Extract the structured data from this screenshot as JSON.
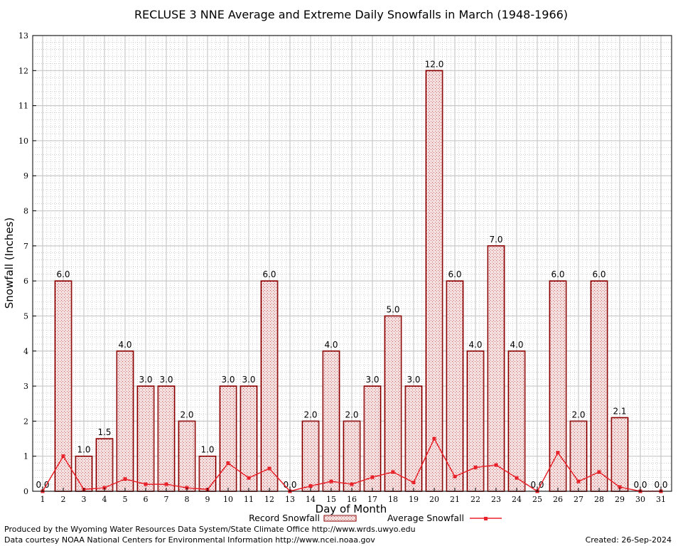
{
  "chart_data": {
    "type": "bar",
    "title": "RECLUSE 3 NNE Average and Extreme Daily Snowfalls in March (1948-1966)",
    "xlabel": "Day of Month",
    "ylabel": "Snowfall (Inches)",
    "ylim": [
      0,
      13
    ],
    "yticks": [
      "0",
      "1",
      "2",
      "3",
      "4",
      "5",
      "6",
      "7",
      "8",
      "9",
      "10",
      "11",
      "12",
      "13"
    ],
    "categories": [
      "1",
      "2",
      "3",
      "4",
      "5",
      "6",
      "7",
      "8",
      "9",
      "10",
      "11",
      "12",
      "13",
      "14",
      "15",
      "16",
      "17",
      "18",
      "19",
      "20",
      "21",
      "22",
      "23",
      "24",
      "25",
      "26",
      "27",
      "28",
      "29",
      "30",
      "31"
    ],
    "grid": true,
    "legend_position": "bottom",
    "series": [
      {
        "name": "Record Snowfall",
        "kind": "bar",
        "color": "#8b0000",
        "values": [
          0.0,
          6.0,
          1.0,
          1.5,
          4.0,
          3.0,
          3.0,
          2.0,
          1.0,
          3.0,
          3.0,
          6.0,
          0.0,
          2.0,
          4.0,
          2.0,
          3.0,
          5.0,
          3.0,
          12.0,
          6.0,
          4.0,
          7.0,
          4.0,
          0.0,
          6.0,
          2.0,
          6.0,
          2.1,
          0.0,
          0.0
        ],
        "labels": [
          "0.0",
          "6.0",
          "1.0",
          "1.5",
          "4.0",
          "3.0",
          "3.0",
          "2.0",
          "1.0",
          "3.0",
          "3.0",
          "6.0",
          "0.0",
          "2.0",
          "4.0",
          "2.0",
          "3.0",
          "5.0",
          "3.0",
          "12.0",
          "6.0",
          "4.0",
          "7.0",
          "4.0",
          "0.0",
          "6.0",
          "2.0",
          "6.0",
          "2.1",
          "0.0",
          "0.0"
        ]
      },
      {
        "name": "Average Snowfall",
        "kind": "line",
        "color": "#e8222a",
        "values": [
          0.0,
          1.0,
          0.05,
          0.1,
          0.35,
          0.2,
          0.2,
          0.1,
          0.05,
          0.8,
          0.38,
          0.65,
          0.0,
          0.15,
          0.28,
          0.2,
          0.4,
          0.55,
          0.25,
          1.5,
          0.42,
          0.68,
          0.75,
          0.38,
          0.0,
          1.1,
          0.28,
          0.55,
          0.12,
          0.0,
          0.0
        ]
      }
    ]
  },
  "footer": {
    "left_line1": "Produced by the Wyoming Water Resources Data System/State Climate Office http://www.wrds.uwyo.edu",
    "left_line2": "Data courtesy NOAA National Centers for Environmental Information http://www.ncei.noaa.gov",
    "created": "Created:  26-Sep-2024"
  }
}
